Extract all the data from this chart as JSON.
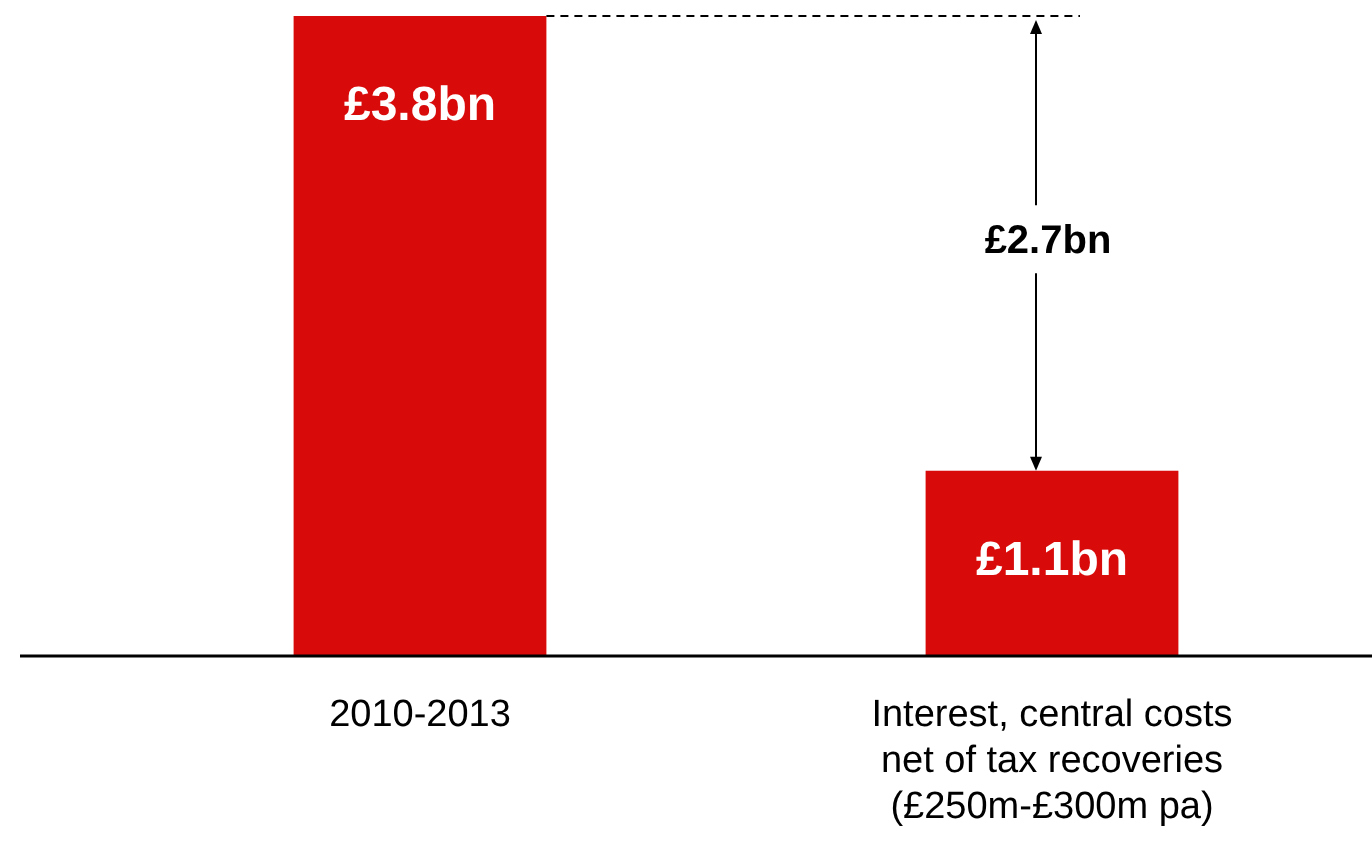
{
  "chart_data": {
    "type": "bar",
    "categories": [
      "2010-2013",
      "Interest, central costs net of tax recoveries (£250m-£300m pa)"
    ],
    "values": [
      3.8,
      1.1
    ],
    "value_labels": [
      "£3.8bn",
      "£1.1bn"
    ],
    "color": "#d90a0a",
    "ref_lines": [
      {
        "axis": "y",
        "value": 3.8,
        "line_style": "dashed",
        "color": "#000000"
      }
    ],
    "annotations": [
      "£2.7bn"
    ]
  }
}
